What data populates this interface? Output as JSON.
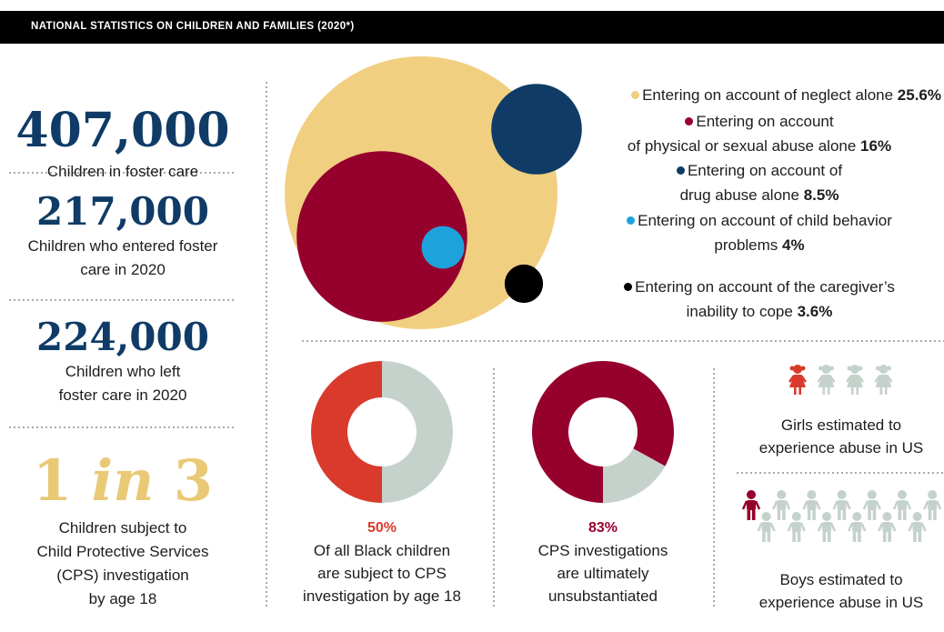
{
  "header": {
    "title": "NATIONAL STATISTICS ON CHILDREN AND FAMILIES (2020*)"
  },
  "stats": [
    {
      "value": "407,000",
      "lines": [
        "Children in foster care"
      ]
    },
    {
      "value": "217,000",
      "lines": [
        "Children who entered foster",
        "care in 2020"
      ]
    },
    {
      "value": "224,000",
      "lines": [
        "Children who left",
        "foster care in 2020"
      ]
    },
    {
      "value": [
        "1",
        "in",
        "3"
      ],
      "lines": [
        "Children subject to",
        "Child Protective Services",
        "(CPS) investigation",
        "by age 18"
      ]
    }
  ],
  "chart_data": {
    "type": "bubble",
    "categories": [
      [
        "Entering on account of neglect alone"
      ],
      [
        "Entering on account",
        "of physical or sexual abuse alone"
      ],
      [
        "Entering on account of",
        "drug abuse alone"
      ],
      [
        "Entering on account of child behavior",
        "problems"
      ],
      [
        "Entering on account of the caregiver’s",
        "inability to cope"
      ]
    ],
    "values": [
      25.6,
      16,
      8.5,
      4,
      3.6
    ],
    "value_labels": [
      "25.6%",
      "16%",
      "8.5%",
      "4%",
      "3.6%"
    ],
    "colors": [
      "#f0cf80",
      "#96002d",
      "#0f3b66",
      "#1ea2dc",
      "#000000"
    ]
  },
  "donuts": [
    {
      "type": "donut",
      "value": 50,
      "value_label": "50%",
      "lines": [
        "Of all Black children",
        "are subject to CPS",
        "investigation by age 18"
      ],
      "color": "#d93a2b",
      "rest_color": "#c5d2cb"
    },
    {
      "type": "donut",
      "value": 83,
      "value_label": "83%",
      "lines": [
        "CPS investigations",
        "are ultimately",
        "unsubstantiated"
      ],
      "color": "#96002d",
      "rest_color": "#c5d2cb"
    }
  ],
  "pictograms": [
    {
      "shape": "girl",
      "total": 4,
      "highlighted": 1,
      "lines": [
        "Girls estimated to",
        "experience abuse in US"
      ],
      "color": "#d93a2b",
      "rest_color": "#c5d2cb"
    },
    {
      "shape": "boy",
      "total": 13,
      "highlighted": 1,
      "lines": [
        "Boys estimated to",
        "experience abuse in US"
      ],
      "color": "#96002d",
      "rest_color": "#c5d2cb"
    }
  ]
}
